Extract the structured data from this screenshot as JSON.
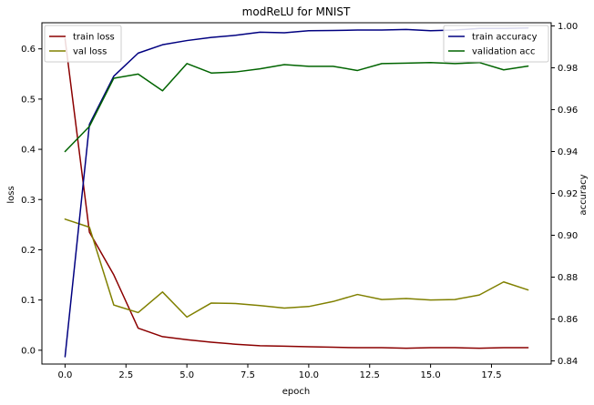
{
  "chart_data": {
    "type": "line",
    "title": "modReLU for MNIST",
    "xlabel": "epoch",
    "ylabel_left": "loss",
    "ylabel_right": "accuracy",
    "x": [
      0,
      1,
      2,
      3,
      4,
      5,
      6,
      7,
      8,
      9,
      10,
      11,
      12,
      13,
      14,
      15,
      16,
      17,
      18,
      19
    ],
    "xlim": [
      -0.95,
      19.95
    ],
    "ylim_left": [
      -0.0275,
      0.652
    ],
    "ylim_right": [
      0.8385,
      1.0015
    ],
    "x_ticks": [
      {
        "value": 0,
        "label": "0.0"
      },
      {
        "value": 2.5,
        "label": "2.5"
      },
      {
        "value": 5,
        "label": "5.0"
      },
      {
        "value": 7.5,
        "label": "7.5"
      },
      {
        "value": 10,
        "label": "10.0"
      },
      {
        "value": 12.5,
        "label": "12.5"
      },
      {
        "value": 15,
        "label": "15.0"
      },
      {
        "value": 17.5,
        "label": "17.5"
      }
    ],
    "y_left_ticks": [
      {
        "value": 0.0,
        "label": "0.0"
      },
      {
        "value": 0.1,
        "label": "0.1"
      },
      {
        "value": 0.2,
        "label": "0.2"
      },
      {
        "value": 0.3,
        "label": "0.3"
      },
      {
        "value": 0.4,
        "label": "0.4"
      },
      {
        "value": 0.5,
        "label": "0.5"
      },
      {
        "value": 0.6,
        "label": "0.6"
      }
    ],
    "y_right_ticks": [
      {
        "value": 0.84,
        "label": "0.84"
      },
      {
        "value": 0.86,
        "label": "0.86"
      },
      {
        "value": 0.88,
        "label": "0.88"
      },
      {
        "value": 0.9,
        "label": "0.90"
      },
      {
        "value": 0.92,
        "label": "0.92"
      },
      {
        "value": 0.94,
        "label": "0.94"
      },
      {
        "value": 0.96,
        "label": "0.96"
      },
      {
        "value": 0.98,
        "label": "0.98"
      },
      {
        "value": 1.0,
        "label": "1.00"
      }
    ],
    "grid": false,
    "series": [
      {
        "name": "train loss",
        "axis": "left",
        "color": "#8b0000",
        "values": [
          0.62,
          0.235,
          0.15,
          0.044,
          0.027,
          0.021,
          0.016,
          0.012,
          0.009,
          0.008,
          0.007,
          0.006,
          0.005,
          0.005,
          0.004,
          0.005,
          0.005,
          0.004,
          0.005,
          0.005
        ]
      },
      {
        "name": "val loss",
        "axis": "left",
        "color": "#808000",
        "values": [
          0.261,
          0.245,
          0.09,
          0.075,
          0.116,
          0.066,
          0.094,
          0.093,
          0.089,
          0.084,
          0.087,
          0.097,
          0.111,
          0.101,
          0.103,
          0.1,
          0.101,
          0.11,
          0.136,
          0.12
        ]
      },
      {
        "name": "train accuracy",
        "axis": "right",
        "color": "#000080",
        "values": [
          0.842,
          0.953,
          0.976,
          0.987,
          0.991,
          0.993,
          0.9945,
          0.9955,
          0.997,
          0.9967,
          0.9977,
          0.9978,
          0.998,
          0.998,
          0.9983,
          0.9977,
          0.998,
          0.9988,
          0.9988,
          0.999
        ]
      },
      {
        "name": "validation acc",
        "axis": "right",
        "color": "#006400",
        "values": [
          0.94,
          0.952,
          0.975,
          0.977,
          0.969,
          0.982,
          0.9775,
          0.978,
          0.9795,
          0.9815,
          0.9807,
          0.9807,
          0.9787,
          0.982,
          0.9822,
          0.9825,
          0.982,
          0.9825,
          0.979,
          0.9808
        ]
      }
    ],
    "legend_left": {
      "placement": "top-left",
      "entries": [
        "train loss",
        "val loss"
      ]
    },
    "legend_right": {
      "placement": "top-right",
      "entries": [
        "train accuracy",
        "validation acc"
      ]
    }
  }
}
